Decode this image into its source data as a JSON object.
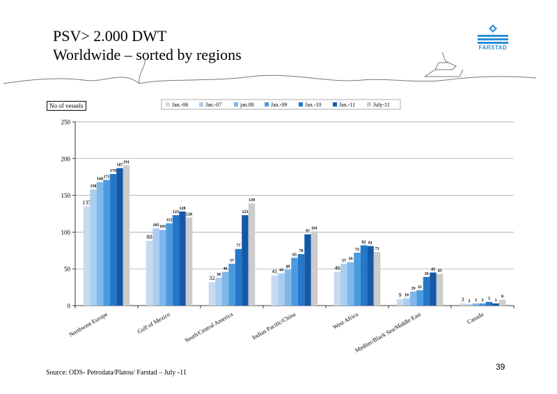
{
  "slide": {
    "title_line1": "PSV> 2.000 DWT",
    "title_line2": "Worldwide – sorted by regions",
    "logo_text": "FARSTAD",
    "source": "Source: ODS- Petrodata/Platou/ Farstad – July -11",
    "page_number": "39"
  },
  "chart_data": {
    "type": "bar",
    "ylabel": "No of vessels",
    "ylim": [
      0,
      250
    ],
    "yticks": [
      0,
      50,
      100,
      150,
      200,
      250
    ],
    "grid": true,
    "legend_position": "top-center",
    "categories": [
      "Northwest Europe",
      "Gulf of Mexico",
      "South/Central America",
      "Indian Pacific/China",
      "West Africa",
      "Mediter/Black Sea/Middle East",
      "Canada"
    ],
    "series": [
      {
        "name": "Jan.-06",
        "color": "#c6dbef",
        "values": [
          135,
          88,
          32,
          41,
          46,
          9,
          3
        ]
      },
      {
        "name": "Jan.-07",
        "color": "#a9cdef",
        "values": [
          158,
          105,
          38,
          44,
          57,
          10,
          2
        ]
      },
      {
        "name": "jan.08",
        "color": "#7fb7ea",
        "values": [
          168,
          103,
          46,
          49,
          59,
          19,
          3
        ]
      },
      {
        "name": "Jan.-09",
        "color": "#4a9ae0",
        "values": [
          171,
          112,
          57,
          65,
          72,
          21,
          3
        ]
      },
      {
        "name": "Jan.-10",
        "color": "#2477c9",
        "values": [
          179,
          123,
          77,
          70,
          82,
          39,
          5
        ]
      },
      {
        "name": "Jan.-11",
        "color": "#1458a8",
        "values": [
          187,
          128,
          123,
          97,
          81,
          45,
          3
        ]
      },
      {
        "name": "July-11",
        "color": "#cccccc",
        "values": [
          191,
          120,
          139,
          101,
          73,
          43,
          8
        ]
      }
    ]
  }
}
